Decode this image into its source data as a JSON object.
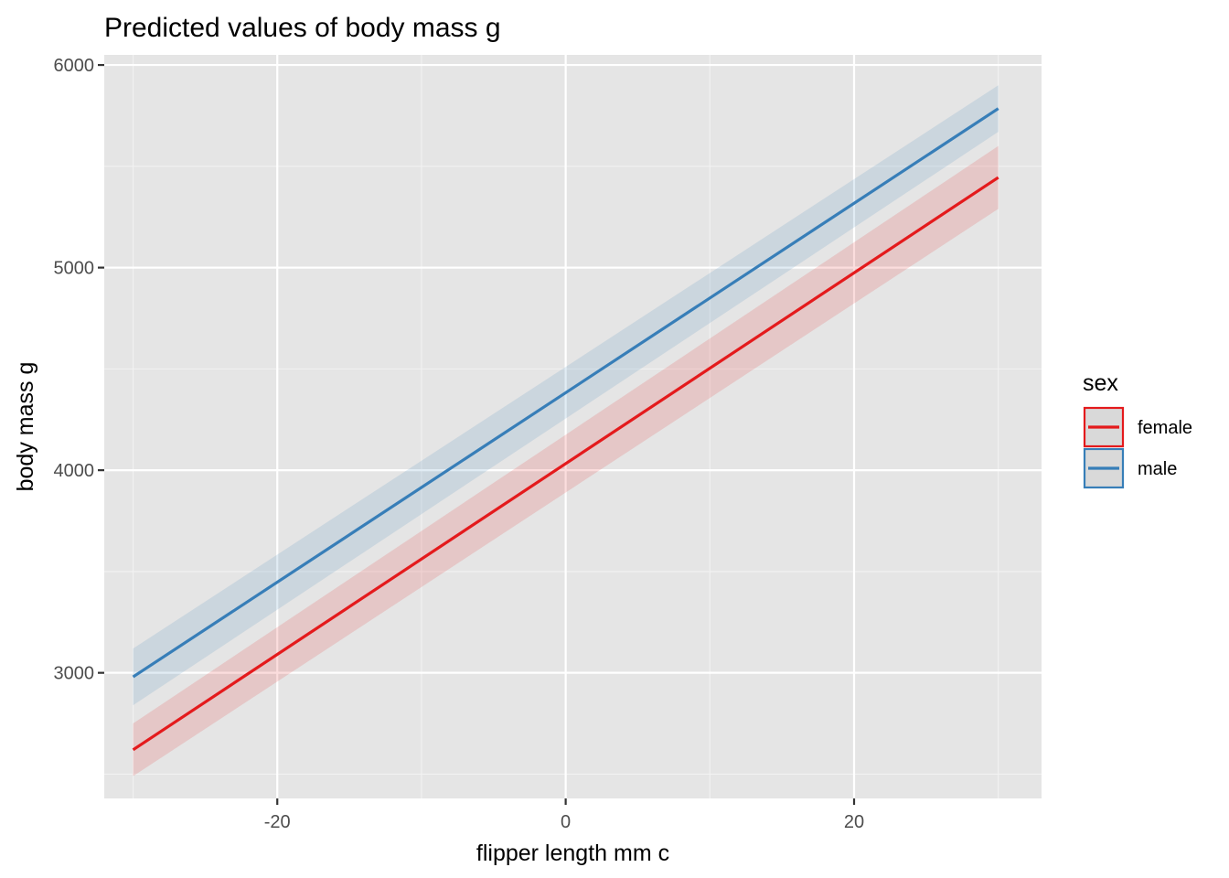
{
  "chart_data": {
    "type": "line",
    "title": "Predicted values of body mass g",
    "xlabel": "flipper length mm c",
    "ylabel": "body mass g",
    "xlim": [
      -32,
      33
    ],
    "ylim": [
      2380,
      6050
    ],
    "x_ticks": [
      -20,
      0,
      20
    ],
    "x_tick_labels": [
      "-20",
      "0",
      "20"
    ],
    "y_ticks": [
      3000,
      4000,
      5000,
      6000
    ],
    "y_tick_labels": [
      "3000",
      "4000",
      "5000",
      "6000"
    ],
    "x_minor": [
      -30,
      -10,
      10,
      30
    ],
    "y_minor": [
      2500,
      3500,
      4500,
      5500
    ],
    "grid": true,
    "legend": {
      "title": "sex",
      "placement": "right"
    },
    "series": [
      {
        "name": "female",
        "color": "#E41A1C",
        "x": [
          -30,
          30
        ],
        "y": [
          2620,
          5445
        ],
        "lower": [
          2490,
          5290
        ],
        "upper": [
          2750,
          5600
        ]
      },
      {
        "name": "male",
        "color": "#377EB8",
        "x": [
          -30,
          30
        ],
        "y": [
          2980,
          5785
        ],
        "lower": [
          2840,
          5670
        ],
        "upper": [
          3120,
          5900
        ]
      }
    ]
  }
}
